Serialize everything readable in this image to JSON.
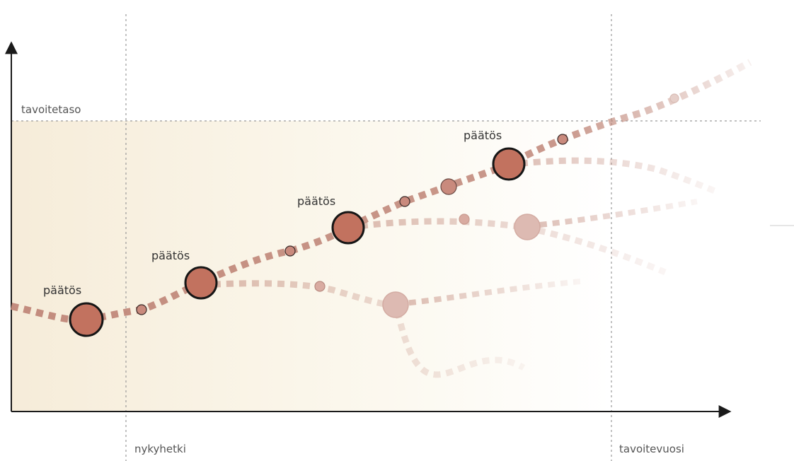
{
  "labels": {
    "target_level": "tavoitetaso",
    "now": "nykyhetki",
    "target_year": "tavoitevuosi",
    "decision": "päätös"
  },
  "colors": {
    "path": "#c08779",
    "node_fill": "#c2725f",
    "node_stroke": "#1a1a1a",
    "ghost_node": "#dcb7b0",
    "area_left": "#f6ecd9",
    "area_right": "#ffffff",
    "guide": "#999999",
    "axis": "#1a1a1a"
  }
}
